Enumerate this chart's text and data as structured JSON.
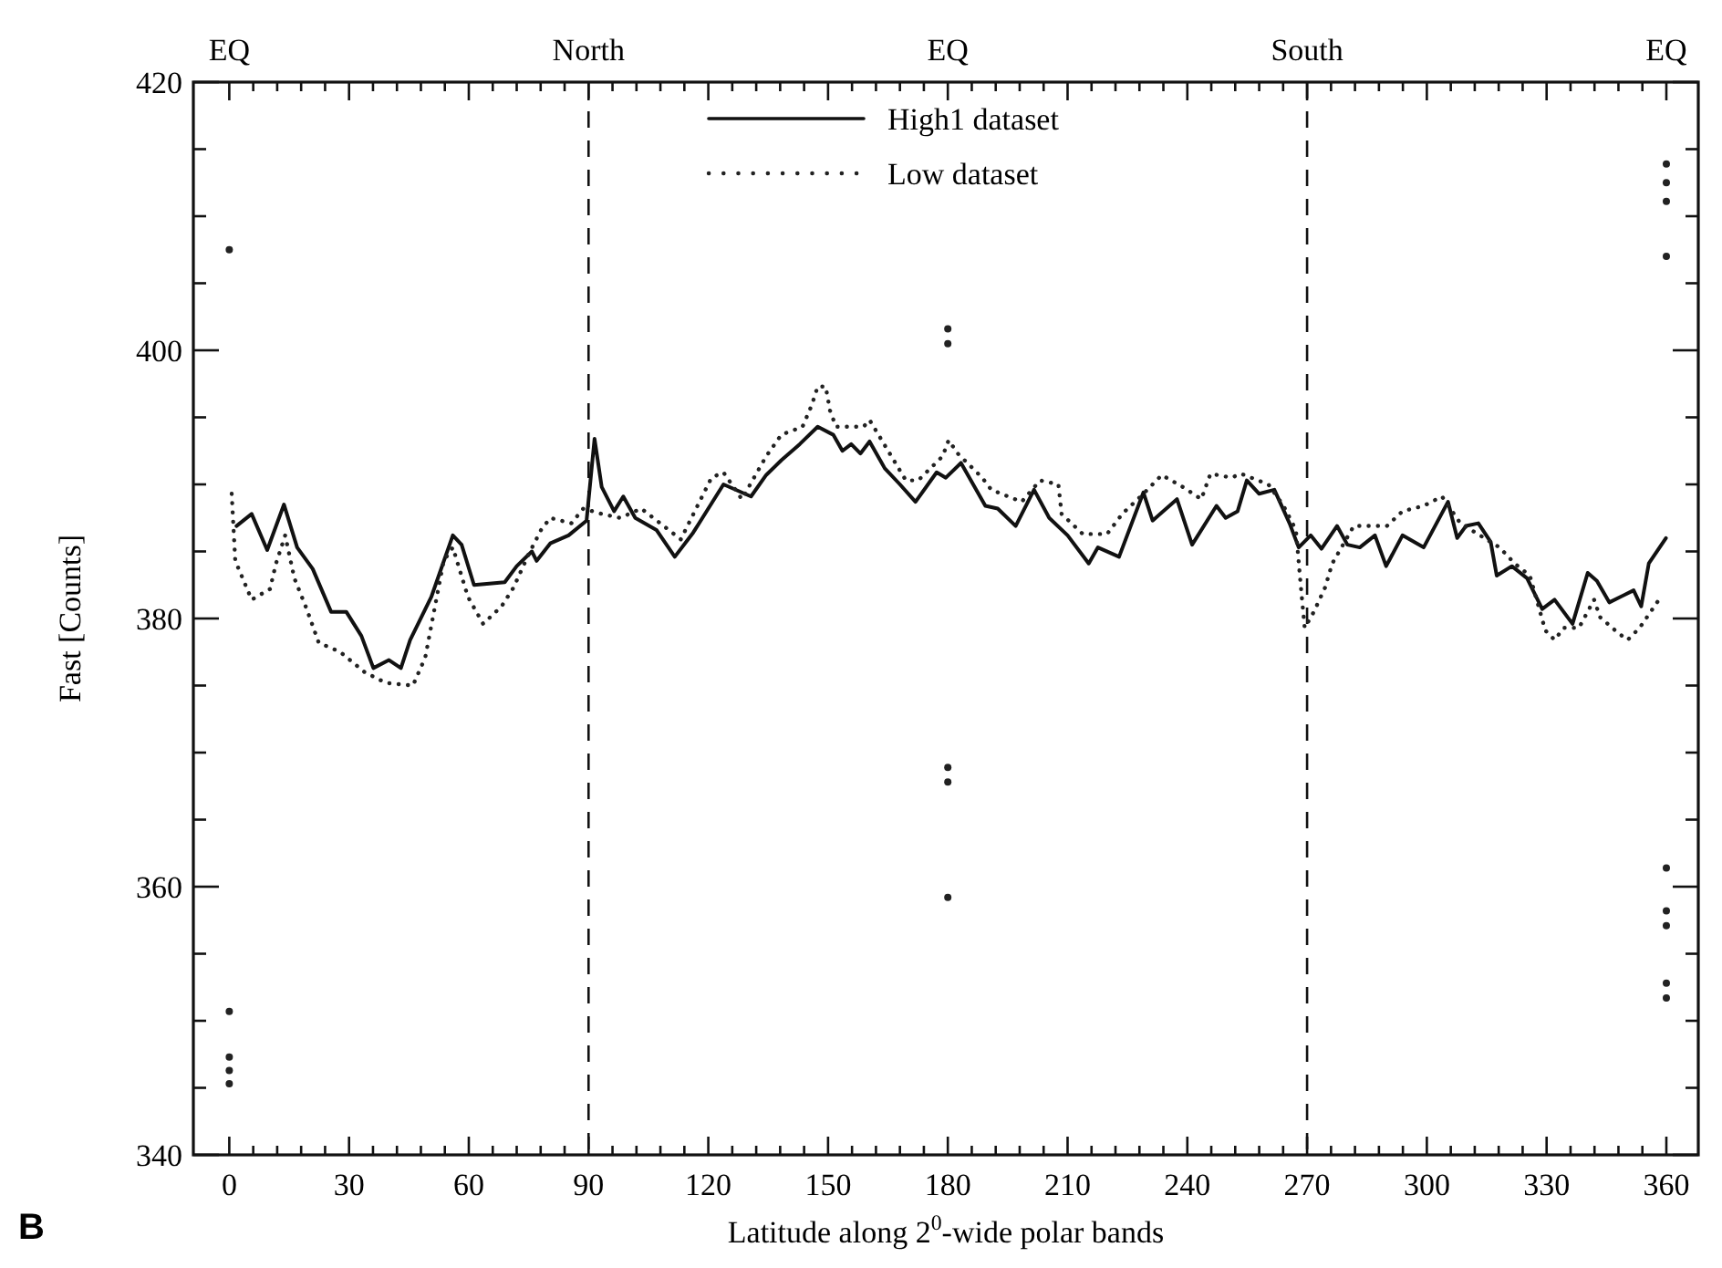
{
  "chart_data": {
    "type": "line",
    "xlabel": "Latitude along 2$^{0}$-wide polar bands",
    "ylabel": "Fast [Counts]",
    "annotations": [
      "B",
      {
        "text": "EQ",
        "x": 0
      },
      {
        "text": "EQ",
        "x": 180
      },
      {
        "text": "EQ",
        "x": 360
      }
    ],
    "xlim": [
      -9,
      368
    ],
    "ylim": [
      340,
      420
    ],
    "legend": "top",
    "grid": false,
    "xticks": [
      0,
      {
        "value": 6,
        "label": null
      },
      {
        "value": 12,
        "label": null
      },
      {
        "value": 18,
        "label": null
      },
      {
        "value": 24,
        "label": null
      },
      30,
      {
        "value": 36,
        "label": null
      },
      {
        "value": 42,
        "label": null
      },
      {
        "value": 48,
        "label": null
      },
      {
        "value": 54,
        "label": null
      },
      60,
      {
        "value": 66,
        "label": null
      },
      {
        "value": 72,
        "label": null
      },
      {
        "value": 78,
        "label": null
      },
      {
        "value": 84,
        "label": null
      },
      90,
      {
        "value": 96,
        "label": null
      },
      {
        "value": 102,
        "label": null
      },
      {
        "value": 108,
        "label": null
      },
      {
        "value": 114,
        "label": null
      },
      120,
      {
        "value": 126,
        "label": null
      },
      {
        "value": 132,
        "label": null
      },
      {
        "value": 138,
        "label": null
      },
      {
        "value": 144,
        "label": null
      },
      150,
      {
        "value": 156,
        "label": null
      },
      {
        "value": 162,
        "label": null
      },
      {
        "value": 168,
        "label": null
      },
      {
        "value": 174,
        "label": null
      },
      180,
      {
        "value": 186,
        "label": null
      },
      {
        "value": 192,
        "label": null
      },
      {
        "value": 198,
        "label": null
      },
      {
        "value": 204,
        "label": null
      },
      210,
      {
        "value": 216,
        "label": null
      },
      {
        "value": 222,
        "label": null
      },
      {
        "value": 228,
        "label": null
      },
      {
        "value": 234,
        "label": null
      },
      240,
      {
        "value": 246,
        "label": null
      },
      {
        "value": 252,
        "label": null
      },
      {
        "value": 258,
        "label": null
      },
      {
        "value": 264,
        "label": null
      },
      270,
      {
        "value": 276,
        "label": null
      },
      {
        "value": 282,
        "label": null
      },
      {
        "value": 288,
        "label": null
      },
      {
        "value": 294,
        "label": null
      },
      300,
      {
        "value": 306,
        "label": null
      },
      {
        "value": 312,
        "label": null
      },
      {
        "value": 318,
        "label": null
      },
      {
        "value": 324,
        "label": null
      },
      330,
      {
        "value": 336,
        "label": null
      },
      {
        "value": 342,
        "label": null
      },
      {
        "value": 348,
        "label": null
      },
      {
        "value": 354,
        "label": null
      },
      360
    ],
    "yticks": [
      340,
      {
        "value": 345,
        "label": null
      },
      {
        "value": 350,
        "label": null
      },
      {
        "value": 355,
        "label": null
      },
      360,
      {
        "value": 365,
        "label": null
      },
      {
        "value": 370,
        "label": null
      },
      {
        "value": 375,
        "label": null
      },
      380,
      {
        "value": 385,
        "label": null
      },
      {
        "value": 390,
        "label": null
      },
      {
        "value": 395,
        "label": null
      },
      400,
      {
        "value": 405,
        "label": null
      },
      {
        "value": 410,
        "label": null
      },
      {
        "value": 415,
        "label": null
      },
      420
    ],
    "ref_lines": [
      {
        "axis": "x",
        "value": 90,
        "label": "North",
        "line_style": "dashed"
      },
      {
        "axis": "x",
        "value": 270,
        "label": "South",
        "line_style": "dashed"
      }
    ],
    "series": [
      {
        "name": "High1 dataset",
        "line_style": "solid",
        "color": "#111111",
        "x": [
          1.8,
          5.6,
          9.5,
          13.7,
          17,
          20.9,
          25.5,
          29.3,
          33.1,
          36.1,
          40,
          43,
          45.3,
          50.6,
          56,
          58.2,
          61.3,
          69,
          72,
          75.8,
          77,
          80.4,
          85,
          89.5,
          91.5,
          93.3,
          96.4,
          98.7,
          101.7,
          107,
          111.6,
          116.2,
          120,
          123.8,
          130.7,
          134.5,
          138.3,
          142.9,
          147.4,
          151.3,
          153.6,
          155.8,
          158.1,
          160.4,
          164.2,
          168,
          171.9,
          177.2,
          179.5,
          183.3,
          189.4,
          192.5,
          197,
          201.6,
          205.4,
          210,
          215.3,
          217.6,
          222.9,
          229,
          231.3,
          237.4,
          241.2,
          247.3,
          249.6,
          252.6,
          254.9,
          258,
          261.8,
          265.6,
          267.9,
          270.9,
          273.6,
          277.5,
          280.1,
          283.2,
          287,
          289.8,
          293.9,
          299.2,
          305.3,
          307.6,
          309.8,
          312.9,
          316,
          317.5,
          321.3,
          325.1,
          328.9,
          332,
          336.5,
          340.3,
          342.6,
          345.7,
          351.8,
          353.7,
          355.6,
          359.9
        ],
        "values": [
          386.9,
          387.8,
          385.1,
          388.5,
          385.3,
          383.7,
          380.5,
          380.5,
          378.7,
          376.3,
          376.9,
          376.3,
          378.4,
          381.6,
          386.2,
          385.5,
          382.5,
          382.7,
          383.9,
          385,
          384.3,
          385.6,
          386.2,
          387.3,
          393.4,
          389.8,
          388,
          389.1,
          387.5,
          386.6,
          384.6,
          386.4,
          388.2,
          390,
          389.1,
          390.7,
          391.8,
          393,
          394.3,
          393.7,
          392.5,
          393,
          392.3,
          393.2,
          391.2,
          390,
          388.7,
          390.9,
          390.5,
          391.6,
          388.4,
          388.2,
          386.9,
          389.6,
          387.5,
          386.2,
          384.1,
          385.3,
          384.6,
          389.4,
          387.3,
          388.9,
          385.5,
          388.4,
          387.5,
          388,
          390.3,
          389.3,
          389.6,
          387.1,
          385.3,
          386.2,
          385.2,
          386.9,
          385.5,
          385.3,
          386.2,
          383.9,
          386.2,
          385.3,
          388.7,
          386,
          386.9,
          387.1,
          385.7,
          383.2,
          383.9,
          383,
          380.7,
          381.4,
          379.6,
          383.4,
          382.8,
          381.2,
          382.1,
          380.9,
          384.1,
          386
        ]
      },
      {
        "name": "Low dataset",
        "line_style": "dotted",
        "color": "#222222",
        "x": [
          0.6,
          1.5,
          5.6,
          10.2,
          11.7,
          14,
          16.3,
          19.4,
          22.4,
          27.8,
          33.9,
          39.2,
          46,
          49.1,
          51.4,
          53.7,
          56,
          59.8,
          63.6,
          68.2,
          71.2,
          75,
          78.1,
          80.4,
          85.7,
          88.7,
          93.3,
          97.9,
          103.2,
          110.1,
          113.1,
          120.8,
          123.8,
          128.4,
          134.5,
          138.3,
          143.6,
          145.9,
          147.4,
          149.4,
          150.5,
          152,
          158.9,
          160.4,
          169.5,
          172.6,
          178.7,
          180.2,
          182.5,
          188.6,
          190.9,
          198.5,
          203.1,
          207.7,
          208.5,
          213.8,
          219.9,
          223.7,
          229,
          233.6,
          238.9,
          243.5,
          245.8,
          251.1,
          253.4,
          260.3,
          264.1,
          267.2,
          268.4,
          269.4,
          271.7,
          274.5,
          276.3,
          281.7,
          290,
          293.9,
          299.2,
          303.8,
          308.4,
          318.2,
          322,
          325.8,
          329.7,
          332,
          334.3,
          338.1,
          341.9,
          343.4,
          348,
          350.3,
          353.3,
          358.6
        ],
        "values": [
          389.3,
          384.3,
          381.4,
          382.2,
          384.1,
          386.2,
          383,
          380.7,
          378.2,
          377.5,
          376,
          375.2,
          375,
          377.1,
          380.7,
          384.3,
          385.3,
          381.6,
          379.6,
          380.9,
          382.3,
          384.8,
          386.6,
          387.5,
          387.1,
          388.2,
          387.8,
          387.5,
          388.2,
          386.6,
          385.9,
          390.5,
          390.9,
          388.9,
          392.1,
          393.7,
          394.3,
          395.9,
          397.3,
          397.3,
          395.5,
          394.3,
          394.3,
          394.8,
          390.3,
          390.3,
          392.1,
          393.3,
          392.3,
          390.5,
          389.6,
          388.7,
          390.3,
          390,
          387.8,
          386.3,
          386.3,
          387.8,
          389.3,
          390.7,
          389.8,
          388.9,
          390.8,
          390.5,
          390.8,
          390,
          388.4,
          386.6,
          382.5,
          379.3,
          380.5,
          382.3,
          384.1,
          386.9,
          386.9,
          388,
          388.4,
          389.1,
          387.1,
          385.3,
          384.1,
          383.2,
          379.1,
          378.4,
          379.3,
          379.3,
          381.4,
          380.1,
          378.9,
          378.4,
          379.3,
          381.6
        ]
      },
      {
        "type": "scatter",
        "marker": "circle",
        "color": "#222222",
        "x": [
          0,
          0,
          0,
          0,
          0,
          180,
          180,
          180,
          180,
          180,
          360,
          360,
          360,
          360,
          360,
          360,
          360,
          360,
          360
        ],
        "values": [
          407.5,
          350.7,
          347.3,
          346.3,
          345.3,
          401.6,
          400.5,
          368.9,
          367.8,
          359.2,
          413.9,
          412.5,
          411.1,
          407,
          361.4,
          358.2,
          357.1,
          352.8,
          351.7
        ]
      }
    ]
  }
}
